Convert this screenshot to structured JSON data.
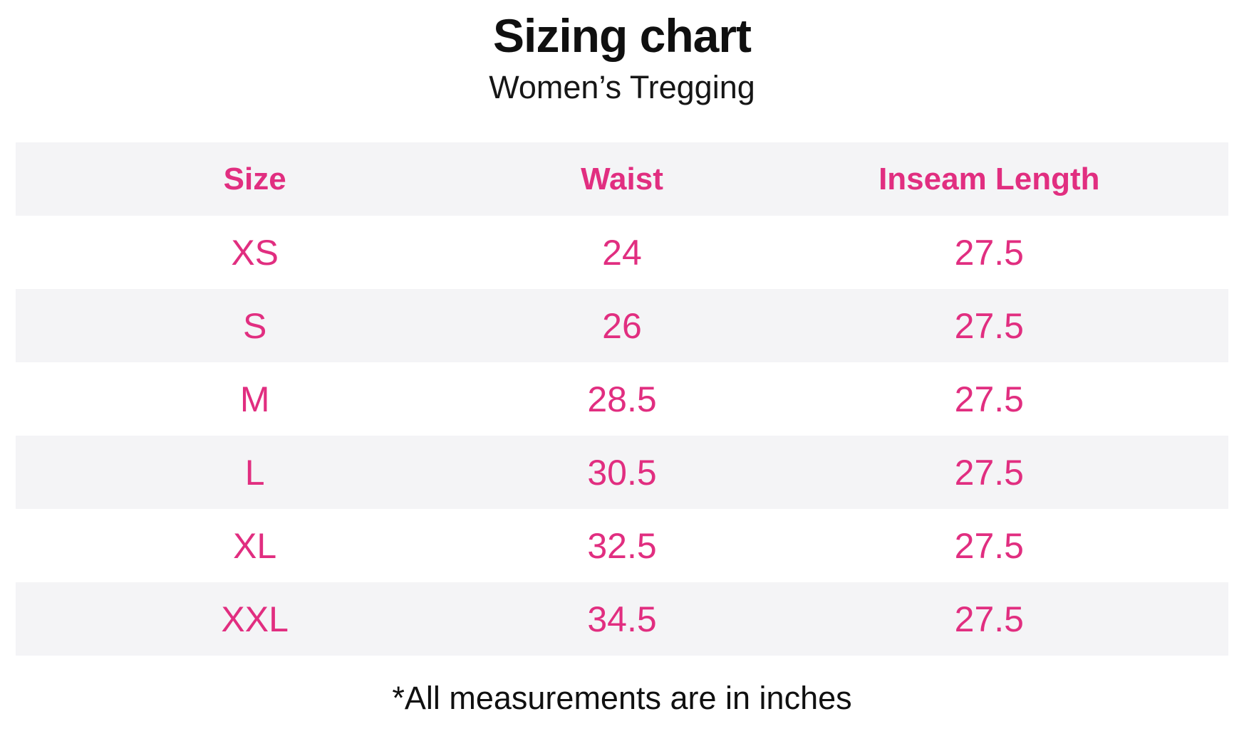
{
  "title": "Sizing chart",
  "subtitle": "Women’s Tregging",
  "footnote": "*All measurements are in inches",
  "colors": {
    "accent_pink": "#e12e80",
    "row_alt_gray": "#f4f4f6",
    "text_black": "#101010",
    "background": "#ffffff"
  },
  "chart_data": {
    "type": "table",
    "title": "Sizing chart",
    "subtitle": "Women’s Tregging",
    "units": "inches",
    "columns": [
      "Size",
      "Waist",
      "Inseam Length"
    ],
    "rows": [
      [
        "XS",
        "24",
        "27.5"
      ],
      [
        "S",
        "26",
        "27.5"
      ],
      [
        "M",
        "28.5",
        "27.5"
      ],
      [
        "L",
        "30.5",
        "27.5"
      ],
      [
        "XL",
        "32.5",
        "27.5"
      ],
      [
        "XXL",
        "34.5",
        "27.5"
      ]
    ],
    "layout_hints": {
      "striped_rows": true,
      "stripe_on": "header-and-even-rows",
      "text_alignment": "center"
    },
    "note": "*All measurements are in inches"
  }
}
